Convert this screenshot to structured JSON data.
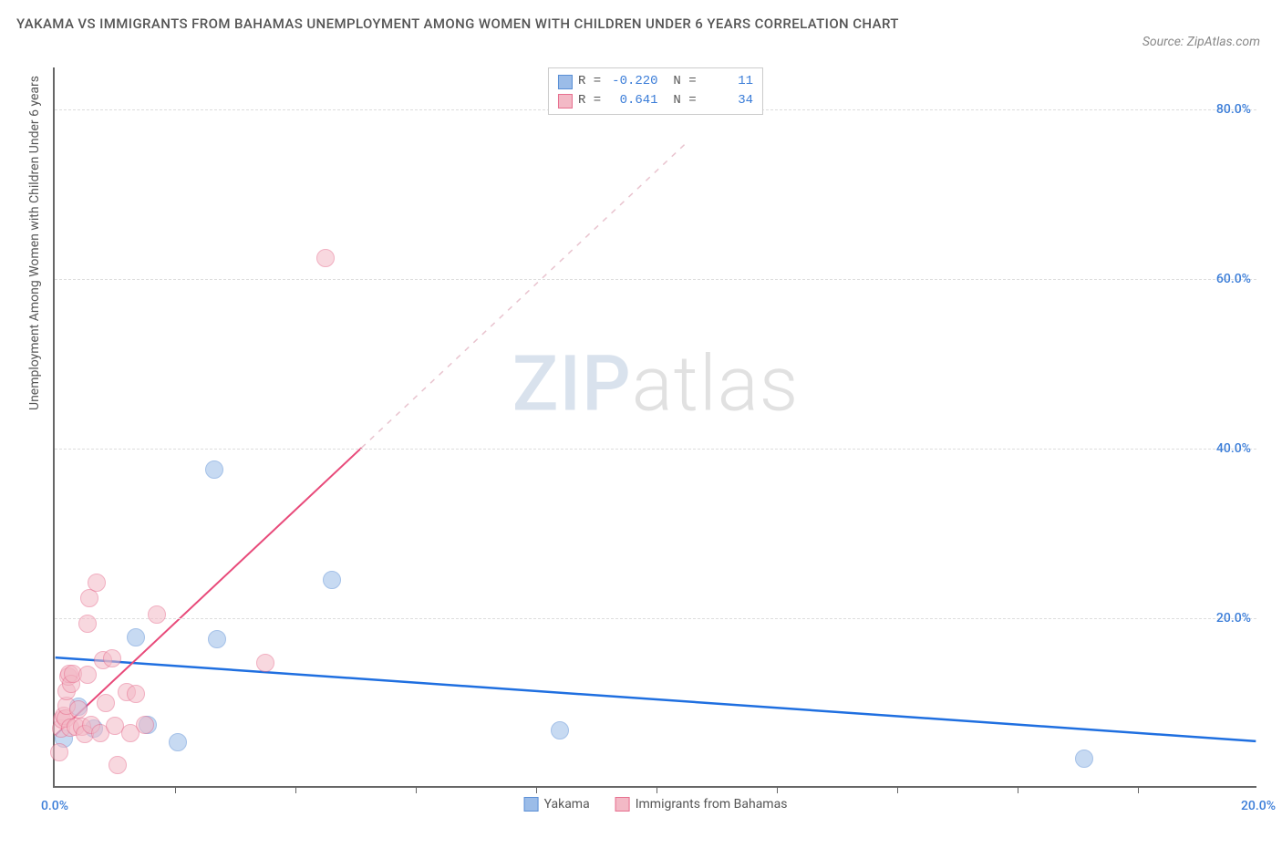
{
  "title": "YAKAMA VS IMMIGRANTS FROM BAHAMAS UNEMPLOYMENT AMONG WOMEN WITH CHILDREN UNDER 6 YEARS CORRELATION CHART",
  "source_label": "Source: ZipAtlas.com",
  "y_axis_title": "Unemployment Among Women with Children Under 6 years",
  "watermark": {
    "part1": "ZIP",
    "part2": "atlas"
  },
  "chart": {
    "type": "scatter",
    "background_color": "#ffffff",
    "grid_color": "#dddddd",
    "axis_color": "#666666",
    "xlim": [
      0,
      20
    ],
    "ylim": [
      0,
      85
    ],
    "x_ticks": [
      0,
      20
    ],
    "x_tick_labels": [
      "0.0%",
      "20.0%"
    ],
    "x_minor_ticks": [
      2,
      4,
      6,
      8,
      10,
      12,
      14,
      16,
      18
    ],
    "y_ticks": [
      20,
      40,
      60,
      80
    ],
    "y_tick_labels": [
      "20.0%",
      "40.0%",
      "60.0%",
      "80.0%"
    ],
    "tick_label_color": "#3b7dd8",
    "tick_label_fontsize": 14,
    "marker_radius": 10,
    "marker_opacity": 0.55,
    "marker_border_width": 1.4,
    "series": [
      {
        "name": "Yakama",
        "fill_color": "#9bbce8",
        "border_color": "#5a8fd6",
        "trend": {
          "x1": 0,
          "y1": 15.2,
          "x2": 20,
          "y2": 5.3,
          "color": "#1f6fe0",
          "width": 2.5,
          "dash": "none"
        },
        "stats": {
          "R": "-0.220",
          "N": "11"
        },
        "points": [
          {
            "x": 0.15,
            "y": 5.6
          },
          {
            "x": 0.4,
            "y": 9.4
          },
          {
            "x": 0.65,
            "y": 6.8
          },
          {
            "x": 1.35,
            "y": 17.5
          },
          {
            "x": 1.55,
            "y": 7.2
          },
          {
            "x": 2.05,
            "y": 5.2
          },
          {
            "x": 2.65,
            "y": 37.3
          },
          {
            "x": 2.7,
            "y": 17.3
          },
          {
            "x": 4.6,
            "y": 24.3
          },
          {
            "x": 8.4,
            "y": 6.6
          },
          {
            "x": 17.1,
            "y": 3.2
          }
        ]
      },
      {
        "name": "Immigrants from Bahamas",
        "fill_color": "#f3b9c6",
        "border_color": "#e76f8f",
        "trend": {
          "x1": 0,
          "y1": 6.0,
          "x2": 5.1,
          "y2": 40.0,
          "dash_ext_x2": 10.5,
          "dash_ext_y2": 76.0,
          "color": "#e84a7a",
          "width": 2,
          "dash_color": "#e9c4cf"
        },
        "stats": {
          "R": "0.641",
          "N": "34"
        },
        "points": [
          {
            "x": 0.08,
            "y": 4.0
          },
          {
            "x": 0.1,
            "y": 6.8
          },
          {
            "x": 0.12,
            "y": 7.9
          },
          {
            "x": 0.15,
            "y": 8.3
          },
          {
            "x": 0.18,
            "y": 8.0
          },
          {
            "x": 0.2,
            "y": 9.5
          },
          {
            "x": 0.2,
            "y": 11.2
          },
          {
            "x": 0.22,
            "y": 12.9
          },
          {
            "x": 0.24,
            "y": 13.2
          },
          {
            "x": 0.25,
            "y": 6.9
          },
          {
            "x": 0.28,
            "y": 12.1
          },
          {
            "x": 0.3,
            "y": 13.2
          },
          {
            "x": 0.35,
            "y": 7.0
          },
          {
            "x": 0.4,
            "y": 9.0
          },
          {
            "x": 0.45,
            "y": 7.0
          },
          {
            "x": 0.5,
            "y": 6.1
          },
          {
            "x": 0.55,
            "y": 13.1
          },
          {
            "x": 0.55,
            "y": 19.2
          },
          {
            "x": 0.58,
            "y": 22.2
          },
          {
            "x": 0.6,
            "y": 7.2
          },
          {
            "x": 0.7,
            "y": 24.0
          },
          {
            "x": 0.75,
            "y": 6.2
          },
          {
            "x": 0.8,
            "y": 14.9
          },
          {
            "x": 0.85,
            "y": 9.8
          },
          {
            "x": 0.95,
            "y": 15.1
          },
          {
            "x": 1.0,
            "y": 7.1
          },
          {
            "x": 1.2,
            "y": 11.1
          },
          {
            "x": 1.25,
            "y": 6.2
          },
          {
            "x": 1.35,
            "y": 10.9
          },
          {
            "x": 1.5,
            "y": 7.2
          },
          {
            "x": 1.7,
            "y": 20.2
          },
          {
            "x": 1.05,
            "y": 2.5
          },
          {
            "x": 3.5,
            "y": 14.5
          },
          {
            "x": 4.5,
            "y": 62.3
          }
        ]
      }
    ]
  },
  "legend_bottom": [
    {
      "label": "Yakama",
      "fill": "#9bbce8",
      "border": "#5a8fd6"
    },
    {
      "label": "Immigrants from Bahamas",
      "fill": "#f3b9c6",
      "border": "#e76f8f"
    }
  ]
}
